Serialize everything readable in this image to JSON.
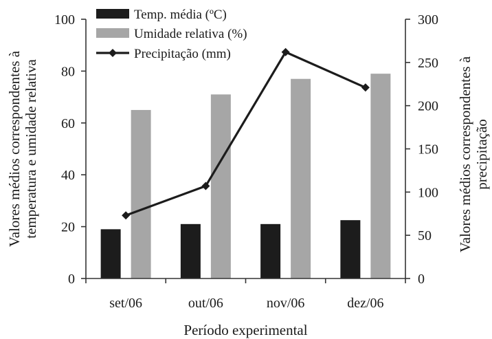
{
  "chart_data": {
    "type": "bar",
    "categories": [
      "set/06",
      "out/06",
      "nov/06",
      "dez/06"
    ],
    "series": [
      {
        "name": "Temp. média (ºC)",
        "kind": "bar",
        "axis": "left",
        "color": "#1c1c1c",
        "values": [
          19,
          21,
          21,
          22.5
        ]
      },
      {
        "name": "Umidade relativa (%)",
        "kind": "bar",
        "axis": "left",
        "color": "#a6a6a6",
        "values": [
          65,
          71,
          77,
          79
        ]
      },
      {
        "name": "Precipitação (mm)",
        "kind": "line",
        "axis": "right",
        "color": "#1c1c1c",
        "marker": "diamond",
        "values": [
          73,
          107,
          262,
          221
        ]
      }
    ],
    "xlabel": "Período experimental",
    "ylabel_left": [
      "Valores médios correspondentes à",
      "temperatura e umidade relativa"
    ],
    "ylabel_right": [
      "Valores médios correspondentes à",
      "precipitação"
    ],
    "ylim_left": [
      0,
      100
    ],
    "yticks_left": [
      0,
      20,
      40,
      60,
      80,
      100
    ],
    "ylim_right": [
      0,
      300
    ],
    "yticks_right": [
      0,
      50,
      100,
      150,
      200,
      250,
      300
    ],
    "grid": false,
    "legend_position": "top-left"
  }
}
